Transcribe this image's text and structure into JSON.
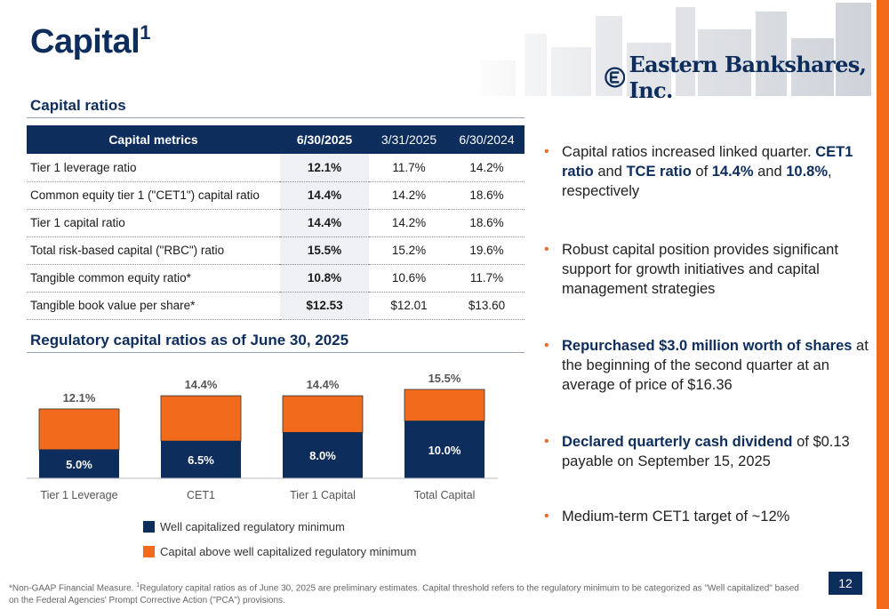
{
  "slide": {
    "title": "Capital",
    "title_sup": "1",
    "page_number": "12",
    "brand_colors": {
      "navy": "#0d2d5c",
      "orange": "#f26a1b"
    }
  },
  "logo": {
    "text": "Eastern Bankshares, Inc.",
    "icon": "eastern-e-icon"
  },
  "capital_ratios": {
    "section_title": "Capital ratios",
    "headers": [
      "Capital metrics",
      "6/30/2025",
      "3/31/2025",
      "6/30/2024"
    ],
    "rows": [
      {
        "metric": "Tier 1 leverage ratio",
        "values": [
          "12.1%",
          "11.7%",
          "14.2%"
        ]
      },
      {
        "metric": "Common equity tier 1 (\"CET1\")  capital ratio",
        "values": [
          "14.4%",
          "14.2%",
          "18.6%"
        ]
      },
      {
        "metric": "Tier 1 capital ratio",
        "values": [
          "14.4%",
          "14.2%",
          "18.6%"
        ]
      },
      {
        "metric": "Total risk-based capital (\"RBC\") ratio",
        "values": [
          "15.5%",
          "15.2%",
          "19.6%"
        ]
      },
      {
        "metric": "Tangible common equity ratio*",
        "values": [
          "10.8%",
          "10.6%",
          "11.7%"
        ]
      },
      {
        "metric": "Tangible book value per share*",
        "values": [
          "$12.53",
          "$12.01",
          "$13.60"
        ]
      }
    ]
  },
  "regulatory": {
    "section_title": "Regulatory capital ratios as of June 30, 2025"
  },
  "chart_data": {
    "type": "bar",
    "stacked": true,
    "categories": [
      "Tier 1 Leverage",
      "CET1",
      "Tier 1 Capital",
      "Total Capital"
    ],
    "series": [
      {
        "name": "Well capitalized regulatory minimum",
        "values": [
          5.0,
          6.5,
          8.0,
          10.0
        ],
        "labels": [
          "5.0%",
          "6.5%",
          "8.0%",
          "10.0%"
        ],
        "color": "#0d2d5c"
      },
      {
        "name": "Capital above well capitalized regulatory minimum",
        "values": [
          7.1,
          7.9,
          6.4,
          5.5
        ],
        "color": "#f26a1b"
      }
    ],
    "totals": [
      12.1,
      14.4,
      14.4,
      15.5
    ],
    "total_labels": [
      "12.1%",
      "14.4%",
      "14.4%",
      "15.5%"
    ],
    "ylim": [
      0,
      16
    ],
    "grid": false,
    "legend_position": "bottom"
  },
  "bullets": [
    {
      "parts": [
        {
          "t": "Capital ratios increased linked quarter. "
        },
        {
          "t": "CET1 ratio",
          "hl": true
        },
        {
          "t": " and "
        },
        {
          "t": "TCE ratio",
          "hl": true
        },
        {
          "t": " of "
        },
        {
          "t": "14.4%",
          "hl": true
        },
        {
          "t": " and "
        },
        {
          "t": "10.8%",
          "hl": true
        },
        {
          "t": ", respectively"
        }
      ]
    },
    {
      "parts": [
        {
          "t": "Robust capital position provides significant support for growth initiatives and capital management strategies"
        }
      ]
    },
    {
      "parts": [
        {
          "t": "Repurchased $3.0 million worth of shares",
          "hl": true
        },
        {
          "t": " at the beginning of the second quarter at an average of price of $16.36"
        }
      ]
    },
    {
      "parts": [
        {
          "t": "Declared quarterly cash dividend",
          "hl": true
        },
        {
          "t": " of $0.13 payable on September 15, 2025"
        }
      ]
    },
    {
      "parts": [
        {
          "t": "Medium-term CET1 target of ~12%"
        }
      ]
    }
  ],
  "footnote": {
    "text_a": "*Non-GAAP Financial Measure. ",
    "sup": "1",
    "text_b": "Regulatory capital ratios as of June 30, 2025 are preliminary estimates. Capital threshold refers to the regulatory minimum to be categorized as \"Well capitalized\" based on the Federal Agencies' Prompt Corrective Action (\"PCA\") provisions."
  }
}
